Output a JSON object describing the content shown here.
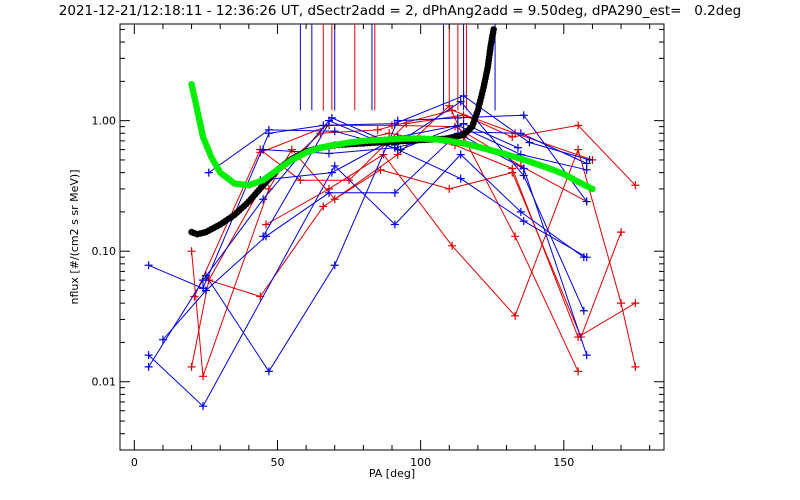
{
  "chart_data": {
    "type": "scatter",
    "title": "2021-12-21/12:18:11 - 12:36:26 UT, dSectr2add = 2, dPhAng2add = 9.50deg, dPA290_est=   0.2deg",
    "xlabel": "PA [deg]",
    "ylabel": "nflux [#/(cm2 s sr MeV)]",
    "xlim": [
      -5,
      185
    ],
    "ylim": [
      0.003,
      5.5
    ],
    "yscale": "log",
    "x_ticks": [
      0,
      50,
      100,
      150
    ],
    "x_tick_labels": [
      "0",
      "50",
      "100",
      "150"
    ],
    "y_ticks": [
      0.01,
      0.1,
      1.0
    ],
    "y_tick_labels": [
      "0.01",
      "0.10",
      "1.00"
    ],
    "colors": {
      "red": "#e00000",
      "blue": "#0000e0",
      "black": "#000000",
      "green": "#00ee00"
    },
    "vertical_markers": {
      "red": [
        66,
        69,
        77,
        84,
        110,
        113,
        116
      ],
      "blue": [
        58,
        62,
        70,
        83,
        108,
        115,
        126
      ]
    },
    "series": [
      {
        "color": "red",
        "x": [
          20,
          24,
          47,
          55,
          70,
          92,
          110,
          115,
          133,
          155
        ],
        "y": [
          0.1,
          0.011,
          0.3,
          0.6,
          0.25,
          0.55,
          1.3,
          0.75,
          0.13,
          0.012
        ]
      },
      {
        "color": "red",
        "x": [
          20,
          26,
          44,
          65,
          85,
          111,
          133,
          160
        ],
        "y": [
          0.013,
          0.06,
          0.3,
          0.8,
          0.85,
          1.2,
          0.8,
          0.5
        ]
      },
      {
        "color": "red",
        "x": [
          21,
          44,
          58,
          75,
          95,
          115,
          132,
          155,
          175
        ],
        "y": [
          0.045,
          0.6,
          0.35,
          0.35,
          0.95,
          1.1,
          0.75,
          0.92,
          0.32
        ]
      },
      {
        "color": "red",
        "x": [
          26,
          44,
          66,
          86,
          110,
          132,
          156,
          170
        ],
        "y": [
          0.06,
          0.045,
          0.22,
          0.42,
          0.3,
          0.4,
          0.022,
          0.14
        ]
      },
      {
        "color": "red",
        "x": [
          46,
          68,
          87,
          111,
          133,
          155,
          170,
          175
        ],
        "y": [
          0.16,
          0.3,
          0.55,
          0.11,
          0.032,
          0.6,
          0.04,
          0.013
        ]
      },
      {
        "color": "red",
        "x": [
          44,
          68,
          90,
          112,
          135,
          158
        ],
        "y": [
          0.57,
          0.92,
          0.92,
          0.9,
          0.45,
          0.24
        ]
      },
      {
        "color": "red",
        "x": [
          70,
          89,
          112,
          132,
          155,
          175
        ],
        "y": [
          0.65,
          0.8,
          0.65,
          0.43,
          0.022,
          0.04
        ]
      },
      {
        "color": "blue",
        "x": [
          5,
          24,
          47,
          66,
          91,
          115,
          138,
          159
        ],
        "y": [
          0.078,
          0.052,
          0.8,
          0.92,
          0.95,
          1.55,
          0.68,
          0.5
        ]
      },
      {
        "color": "blue",
        "x": [
          5,
          24,
          70,
          91,
          114,
          135,
          157
        ],
        "y": [
          0.016,
          0.0065,
          0.45,
          0.16,
          0.55,
          0.2,
          0.09
        ]
      },
      {
        "color": "blue",
        "x": [
          5,
          24,
          45,
          68,
          92,
          114,
          136,
          158
        ],
        "y": [
          0.013,
          0.06,
          0.25,
          1.0,
          0.6,
          0.36,
          0.17,
          0.09
        ]
      },
      {
        "color": "blue",
        "x": [
          10,
          25,
          46,
          68,
          91,
          113,
          136,
          158
        ],
        "y": [
          0.021,
          0.05,
          0.13,
          0.28,
          0.28,
          0.8,
          0.43,
          0.016
        ]
      },
      {
        "color": "blue",
        "x": [
          26,
          47,
          70,
          93,
          115,
          134
        ],
        "y": [
          0.4,
          0.85,
          0.83,
          0.6,
          0.95,
          0.62
        ]
      },
      {
        "color": "blue",
        "x": [
          25,
          47,
          70,
          92,
          113,
          136,
          158
        ],
        "y": [
          0.065,
          0.012,
          0.078,
          1.0,
          1.05,
          1.1,
          0.24
        ]
      },
      {
        "color": "blue",
        "x": [
          45,
          68,
          91,
          115,
          135,
          158
        ],
        "y": [
          0.6,
          0.56,
          0.62,
          0.82,
          0.8,
          0.47
        ]
      },
      {
        "color": "blue",
        "x": [
          45,
          69,
          91,
          114,
          136,
          157
        ],
        "y": [
          0.13,
          1.05,
          0.65,
          1.4,
          0.38,
          0.035
        ]
      },
      {
        "color": "blue",
        "x": [
          44,
          69,
          92,
          113,
          135,
          158
        ],
        "y": [
          0.35,
          0.4,
          0.75,
          0.92,
          0.55,
          0.42
        ]
      }
    ],
    "curves": [
      {
        "color": "black",
        "style": "thick-dots",
        "x": [
          20,
          22,
          25,
          30,
          35,
          40,
          45,
          50,
          55,
          60,
          65,
          70,
          75,
          80,
          85,
          90,
          95,
          100,
          105,
          110,
          115,
          118,
          120,
          122,
          123.5,
          124.5,
          125.5
        ],
        "y": [
          0.14,
          0.135,
          0.14,
          0.16,
          0.19,
          0.24,
          0.32,
          0.42,
          0.51,
          0.58,
          0.62,
          0.65,
          0.66,
          0.67,
          0.68,
          0.69,
          0.7,
          0.71,
          0.72,
          0.73,
          0.78,
          0.9,
          1.2,
          1.8,
          2.6,
          3.8,
          5.0
        ]
      },
      {
        "color": "green",
        "style": "thick-dots",
        "x": [
          20,
          22,
          24,
          27,
          30,
          35,
          40,
          45,
          50,
          55,
          60,
          65,
          70,
          75,
          80,
          85,
          90,
          95,
          100,
          105,
          110,
          115,
          120,
          125,
          130,
          135,
          140,
          145,
          150,
          155,
          160
        ],
        "y": [
          1.9,
          1.2,
          0.75,
          0.52,
          0.4,
          0.33,
          0.32,
          0.35,
          0.42,
          0.5,
          0.57,
          0.62,
          0.65,
          0.68,
          0.7,
          0.71,
          0.72,
          0.73,
          0.73,
          0.72,
          0.7,
          0.67,
          0.63,
          0.59,
          0.55,
          0.51,
          0.47,
          0.43,
          0.39,
          0.34,
          0.3
        ]
      }
    ]
  }
}
